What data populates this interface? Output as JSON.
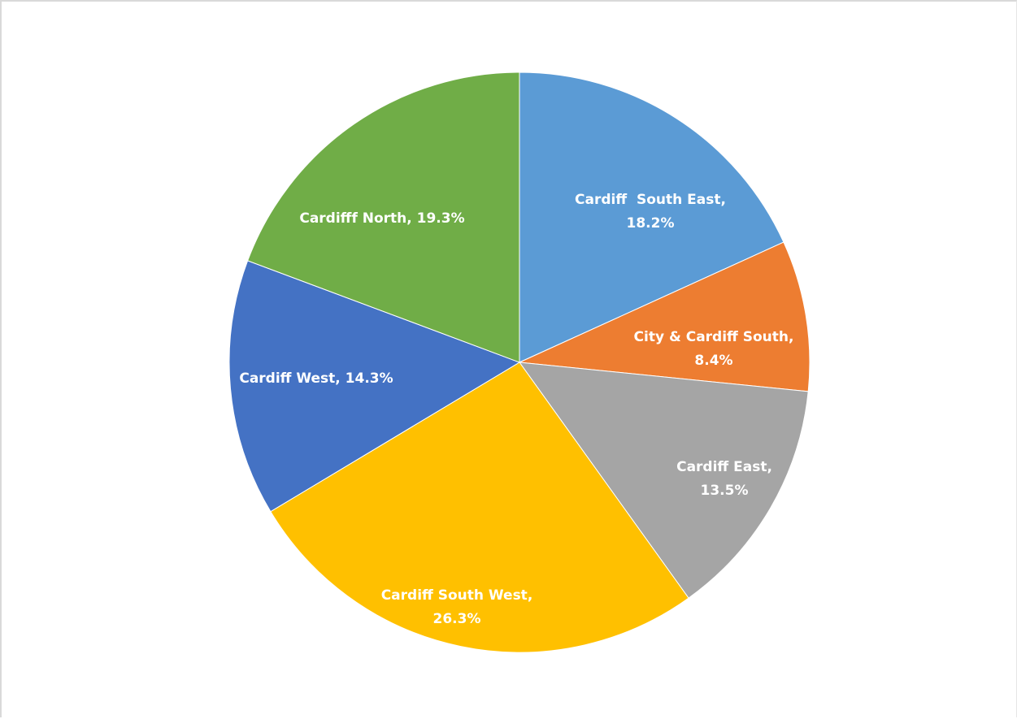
{
  "chart_data": {
    "type": "pie",
    "title": "",
    "start_angle_deg": 0,
    "direction": "clockwise",
    "slices": [
      {
        "label": "Cardiff  South East",
        "value": 18.2,
        "value_text": "18.2%",
        "color": "#5b9bd5"
      },
      {
        "label": "City & Cardiff South",
        "value": 8.4,
        "value_text": "8.4%",
        "color": "#ed7d31"
      },
      {
        "label": "Cardiff East",
        "value": 13.5,
        "value_text": "13.5%",
        "color": "#a5a5a5"
      },
      {
        "label": "Cardiff South West",
        "value": 26.3,
        "value_text": "26.3%",
        "color": "#ffc000"
      },
      {
        "label": "Cardiff West",
        "value": 14.3,
        "value_text": "14.3%",
        "color": "#4472c4"
      },
      {
        "label": "Cardifff North",
        "value": 19.3,
        "value_text": "19.3%",
        "color": "#70ad47"
      }
    ],
    "legend": "none",
    "data_labels": "inside"
  }
}
